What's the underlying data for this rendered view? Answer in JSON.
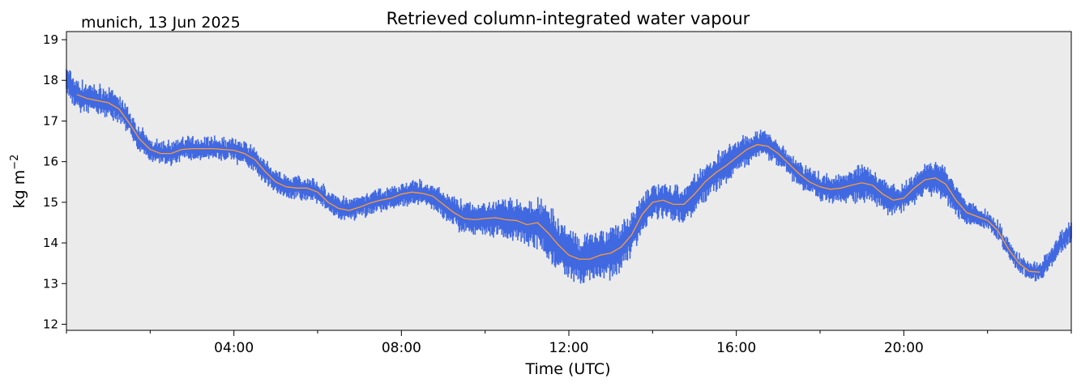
{
  "header": {
    "location_date": "munich, 13 Jun 2025"
  },
  "chart_data": {
    "type": "line",
    "title": "Retrieved column-integrated water vapour",
    "xlabel": "Time (UTC)",
    "ylabel": "kg m−2",
    "ylabel_main": "kg m",
    "ylabel_exp": "−2",
    "xlim": [
      0,
      24
    ],
    "ylim": [
      11.85,
      19.2
    ],
    "yticks": [
      12,
      13,
      14,
      15,
      16,
      17,
      18,
      19
    ],
    "xticks": [
      {
        "value": 4,
        "label": "04:00"
      },
      {
        "value": 8,
        "label": "08:00"
      },
      {
        "value": 12,
        "label": "12:00"
      },
      {
        "value": 16,
        "label": "16:00"
      },
      {
        "value": 20,
        "label": "20:00"
      }
    ],
    "minor_xticks": [
      0,
      2,
      6,
      10,
      14,
      18,
      22,
      24
    ],
    "grid": false,
    "background": "#ebebeb",
    "series": [
      {
        "color": "#4169e1",
        "style": "scatter-band",
        "spread": [
          [
            0.0,
            0.25
          ],
          [
            1.0,
            0.25
          ],
          [
            2.0,
            0.2
          ],
          [
            3.0,
            0.2
          ],
          [
            4.0,
            0.2
          ],
          [
            5.0,
            0.2
          ],
          [
            6.0,
            0.2
          ],
          [
            8.0,
            0.2
          ],
          [
            9.0,
            0.25
          ],
          [
            10.0,
            0.3
          ],
          [
            11.0,
            0.4
          ],
          [
            11.5,
            0.5
          ],
          [
            12.0,
            0.45
          ],
          [
            13.0,
            0.45
          ],
          [
            14.0,
            0.3
          ],
          [
            15.0,
            0.35
          ],
          [
            16.0,
            0.3
          ],
          [
            17.0,
            0.2
          ],
          [
            18.5,
            0.25
          ],
          [
            19.0,
            0.35
          ],
          [
            20.0,
            0.25
          ],
          [
            21.0,
            0.3
          ],
          [
            22.0,
            0.15
          ],
          [
            23.0,
            0.15
          ],
          [
            24.0,
            0.2
          ]
        ]
      },
      {
        "color": "#ff9a33",
        "style": "line",
        "points": [
          [
            0.25,
            17.65
          ],
          [
            0.5,
            17.55
          ],
          [
            0.75,
            17.5
          ],
          [
            1.0,
            17.45
          ],
          [
            1.25,
            17.3
          ],
          [
            1.5,
            16.95
          ],
          [
            1.75,
            16.55
          ],
          [
            2.0,
            16.3
          ],
          [
            2.25,
            16.2
          ],
          [
            2.5,
            16.2
          ],
          [
            2.75,
            16.3
          ],
          [
            3.0,
            16.32
          ],
          [
            3.5,
            16.32
          ],
          [
            4.0,
            16.28
          ],
          [
            4.25,
            16.2
          ],
          [
            4.5,
            16.05
          ],
          [
            4.75,
            15.75
          ],
          [
            5.0,
            15.5
          ],
          [
            5.25,
            15.38
          ],
          [
            5.5,
            15.35
          ],
          [
            5.75,
            15.35
          ],
          [
            6.0,
            15.25
          ],
          [
            6.25,
            15.0
          ],
          [
            6.5,
            14.85
          ],
          [
            6.75,
            14.8
          ],
          [
            7.0,
            14.88
          ],
          [
            7.25,
            14.98
          ],
          [
            7.5,
            15.05
          ],
          [
            7.75,
            15.1
          ],
          [
            8.0,
            15.2
          ],
          [
            8.25,
            15.25
          ],
          [
            8.5,
            15.22
          ],
          [
            8.75,
            15.15
          ],
          [
            9.0,
            14.95
          ],
          [
            9.25,
            14.75
          ],
          [
            9.5,
            14.6
          ],
          [
            9.75,
            14.57
          ],
          [
            10.0,
            14.6
          ],
          [
            10.25,
            14.62
          ],
          [
            10.5,
            14.57
          ],
          [
            10.75,
            14.55
          ],
          [
            11.0,
            14.45
          ],
          [
            11.25,
            14.5
          ],
          [
            11.5,
            14.25
          ],
          [
            11.75,
            13.95
          ],
          [
            12.0,
            13.7
          ],
          [
            12.25,
            13.6
          ],
          [
            12.5,
            13.6
          ],
          [
            12.75,
            13.7
          ],
          [
            13.0,
            13.75
          ],
          [
            13.25,
            13.9
          ],
          [
            13.5,
            14.2
          ],
          [
            13.75,
            14.7
          ],
          [
            14.0,
            15.0
          ],
          [
            14.25,
            15.05
          ],
          [
            14.5,
            14.95
          ],
          [
            14.75,
            14.95
          ],
          [
            15.0,
            15.2
          ],
          [
            15.25,
            15.5
          ],
          [
            15.5,
            15.72
          ],
          [
            15.75,
            15.9
          ],
          [
            16.0,
            16.1
          ],
          [
            16.25,
            16.3
          ],
          [
            16.5,
            16.42
          ],
          [
            16.75,
            16.38
          ],
          [
            17.0,
            16.2
          ],
          [
            17.25,
            15.95
          ],
          [
            17.5,
            15.7
          ],
          [
            17.75,
            15.5
          ],
          [
            18.0,
            15.38
          ],
          [
            18.25,
            15.32
          ],
          [
            18.5,
            15.35
          ],
          [
            18.75,
            15.42
          ],
          [
            19.0,
            15.48
          ],
          [
            19.25,
            15.42
          ],
          [
            19.5,
            15.2
          ],
          [
            19.75,
            15.05
          ],
          [
            20.0,
            15.1
          ],
          [
            20.25,
            15.35
          ],
          [
            20.5,
            15.55
          ],
          [
            20.75,
            15.6
          ],
          [
            21.0,
            15.45
          ],
          [
            21.25,
            15.05
          ],
          [
            21.5,
            14.75
          ],
          [
            21.75,
            14.65
          ],
          [
            22.0,
            14.55
          ],
          [
            22.25,
            14.3
          ],
          [
            22.5,
            13.85
          ],
          [
            22.75,
            13.5
          ],
          [
            23.0,
            13.3
          ],
          [
            23.25,
            13.28
          ]
        ]
      }
    ]
  }
}
